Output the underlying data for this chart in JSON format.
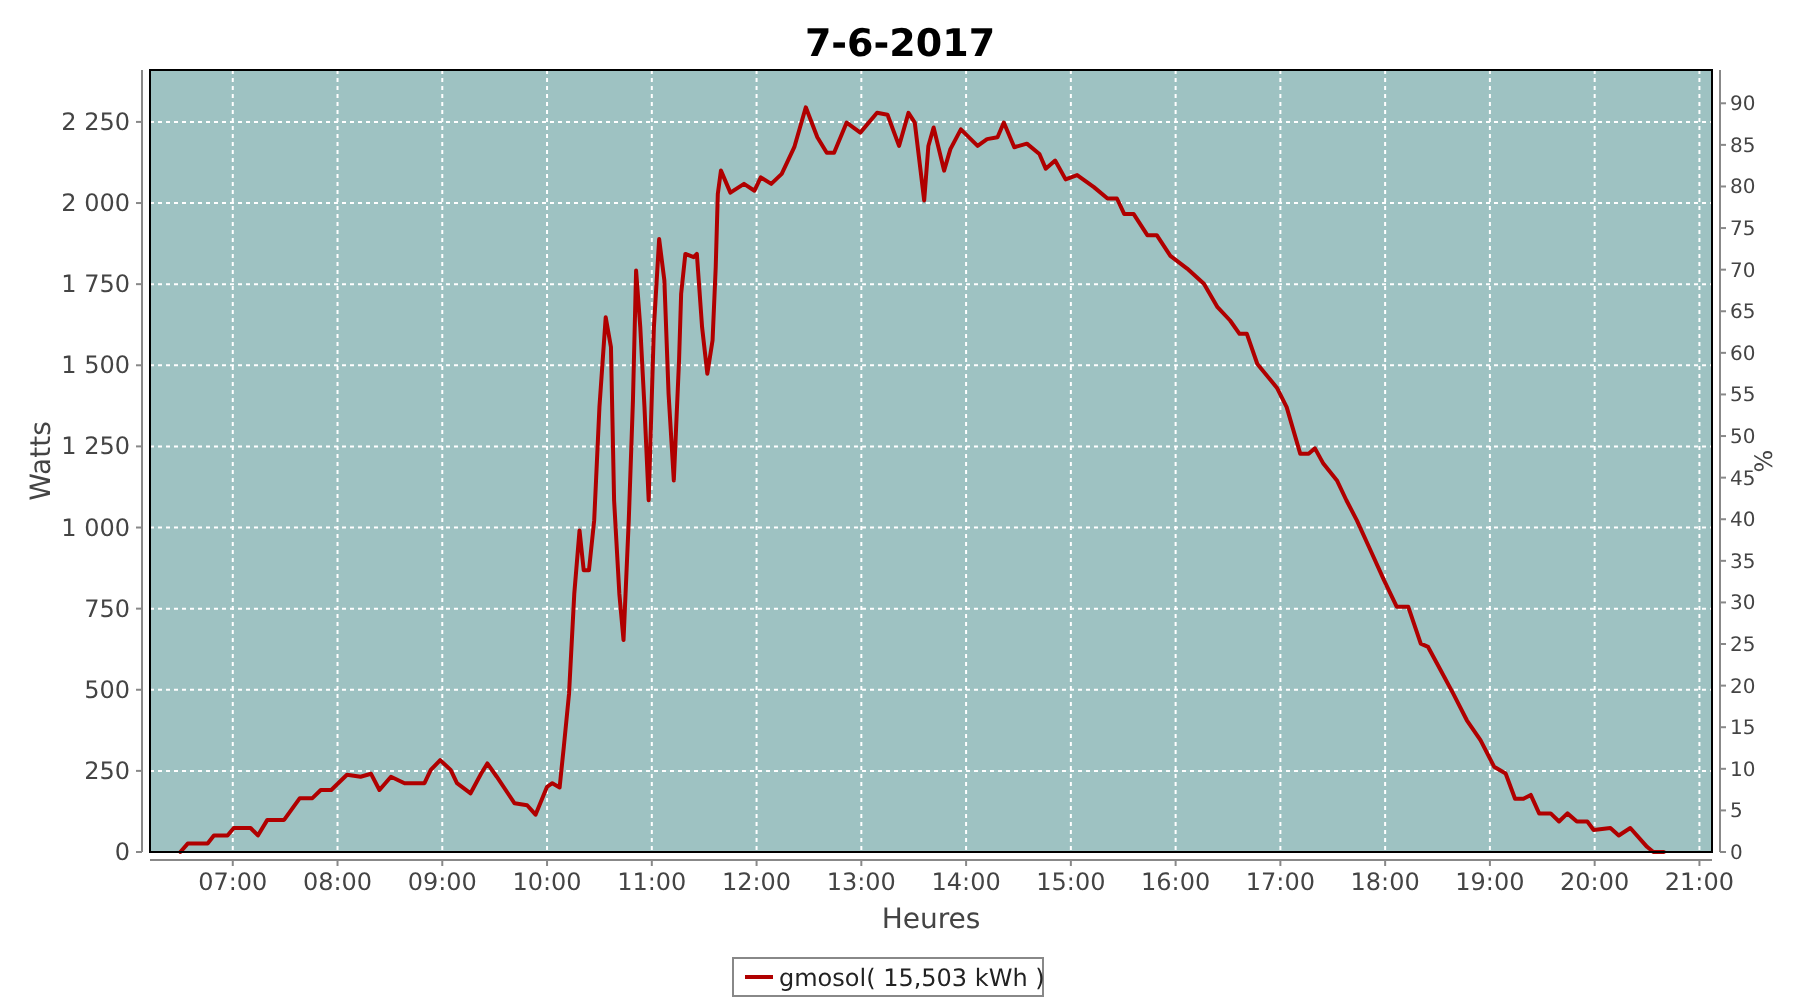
{
  "chart_data": {
    "type": "line",
    "title": "7-6-2017",
    "xlabel": "Heures",
    "ylabel": "Watts",
    "y2label": "%",
    "xlim": [
      6.21,
      21.12
    ],
    "xticks": [
      {
        "value": 7,
        "label": "07:00"
      },
      {
        "value": 8,
        "label": "08:00"
      },
      {
        "value": 9,
        "label": "09:00"
      },
      {
        "value": 10,
        "label": "10:00"
      },
      {
        "value": 11,
        "label": "11:00"
      },
      {
        "value": 12,
        "label": "12:00"
      },
      {
        "value": 13,
        "label": "13:00"
      },
      {
        "value": 14,
        "label": "14:00"
      },
      {
        "value": 15,
        "label": "15:00"
      },
      {
        "value": 16,
        "label": "16:00"
      },
      {
        "value": 17,
        "label": "17:00"
      },
      {
        "value": 18,
        "label": "18:00"
      },
      {
        "value": 19,
        "label": "19:00"
      },
      {
        "value": 20,
        "label": "20:00"
      },
      {
        "value": 21,
        "label": "21:00"
      }
    ],
    "ylim": [
      0,
      2410
    ],
    "yticks": [
      0,
      250,
      500,
      750,
      {
        "value": 1000,
        "label": "1 000"
      },
      {
        "value": 1250,
        "label": "1 250"
      },
      {
        "value": 1500,
        "label": "1 500"
      },
      {
        "value": 1750,
        "label": "1 750"
      },
      {
        "value": 2000,
        "label": "2 000"
      },
      {
        "value": 2250,
        "label": "2 250"
      }
    ],
    "y2lim": [
      0,
      94
    ],
    "y2ticks": [
      0,
      5,
      10,
      15,
      20,
      25,
      30,
      35,
      40,
      45,
      50,
      55,
      60,
      65,
      70,
      75,
      80,
      85,
      90
    ],
    "grid": true,
    "legend": "bottom",
    "marker": "none",
    "line_style": "solid",
    "series": [
      {
        "name": "gmosol( 15,503 kWh )",
        "color": "#b00000",
        "x": [
          6.5,
          6.57,
          6.76,
          6.82,
          6.95,
          7.01,
          7.17,
          7.24,
          7.33,
          7.49,
          7.64,
          7.76,
          7.84,
          7.94,
          8.09,
          8.22,
          8.32,
          8.4,
          8.51,
          8.64,
          8.83,
          8.89,
          8.98,
          9.08,
          9.14,
          9.27,
          9.37,
          9.43,
          9.52,
          9.69,
          9.81,
          9.89,
          10.0,
          10.05,
          10.12,
          10.16,
          10.21,
          10.26,
          10.31,
          10.35,
          10.4,
          10.45,
          10.5,
          10.56,
          10.61,
          10.64,
          10.69,
          10.73,
          10.78,
          10.82,
          10.85,
          10.89,
          10.93,
          10.97,
          11.02,
          11.07,
          11.12,
          11.16,
          11.21,
          11.26,
          11.28,
          11.32,
          11.4,
          11.43,
          11.48,
          11.53,
          11.58,
          11.61,
          11.63,
          11.66,
          11.75,
          11.88,
          11.98,
          12.04,
          12.14,
          12.24,
          12.36,
          12.47,
          12.58,
          12.67,
          12.74,
          12.86,
          12.99,
          13.15,
          13.25,
          13.36,
          13.45,
          13.51,
          13.6,
          13.64,
          13.69,
          13.79,
          13.85,
          13.95,
          14.11,
          14.2,
          14.3,
          14.36,
          14.46,
          14.58,
          14.7,
          14.76,
          14.85,
          14.95,
          15.06,
          15.22,
          15.35,
          15.44,
          15.51,
          15.6,
          15.73,
          15.82,
          15.95,
          16.11,
          16.27,
          16.4,
          16.52,
          16.61,
          16.68,
          16.78,
          16.91,
          16.97,
          17.06,
          17.19,
          17.27,
          17.33,
          17.41,
          17.54,
          17.63,
          17.73,
          17.86,
          17.99,
          18.11,
          18.22,
          18.34,
          18.41,
          18.53,
          18.65,
          18.78,
          18.91,
          19.04,
          19.15,
          19.24,
          19.32,
          19.39,
          19.47,
          19.58,
          19.66,
          19.74,
          19.83,
          19.93,
          19.99,
          20.15,
          20.23,
          20.34,
          20.5,
          20.56,
          20.66
        ],
        "values": [
          0,
          26,
          26,
          51,
          51,
          74,
          74,
          51,
          99,
          99,
          166,
          166,
          191,
          191,
          238,
          232,
          241,
          191,
          232,
          212,
          212,
          253,
          283,
          253,
          212,
          181,
          241,
          273,
          232,
          150,
          144,
          115,
          201,
          212,
          199,
          324,
          488,
          796,
          991,
          868,
          868,
          1022,
          1371,
          1648,
          1556,
          1084,
          796,
          653,
          1022,
          1392,
          1792,
          1617,
          1371,
          1084,
          1617,
          1889,
          1761,
          1412,
          1145,
          1515,
          1720,
          1843,
          1833,
          1843,
          1617,
          1474,
          1577,
          1802,
          2028,
          2100,
          2032,
          2059,
          2038,
          2079,
          2059,
          2090,
          2172,
          2295,
          2203,
          2155,
          2155,
          2248,
          2217,
          2278,
          2272,
          2176,
          2278,
          2248,
          2008,
          2176,
          2233,
          2100,
          2166,
          2227,
          2176,
          2197,
          2203,
          2248,
          2172,
          2183,
          2151,
          2106,
          2131,
          2073,
          2086,
          2049,
          2014,
          2014,
          1966,
          1966,
          1901,
          1901,
          1837,
          1798,
          1751,
          1679,
          1638,
          1597,
          1597,
          1504,
          1453,
          1429,
          1371,
          1227,
          1227,
          1244,
          1197,
          1145,
          1084,
          1022,
          930,
          837,
          756,
          756,
          642,
          632,
          560,
          488,
          406,
          345,
          263,
          242,
          164,
          164,
          176,
          119,
          119,
          94,
          119,
          94,
          94,
          68,
          74,
          51,
          74,
          16,
          0,
          0
        ]
      }
    ]
  }
}
